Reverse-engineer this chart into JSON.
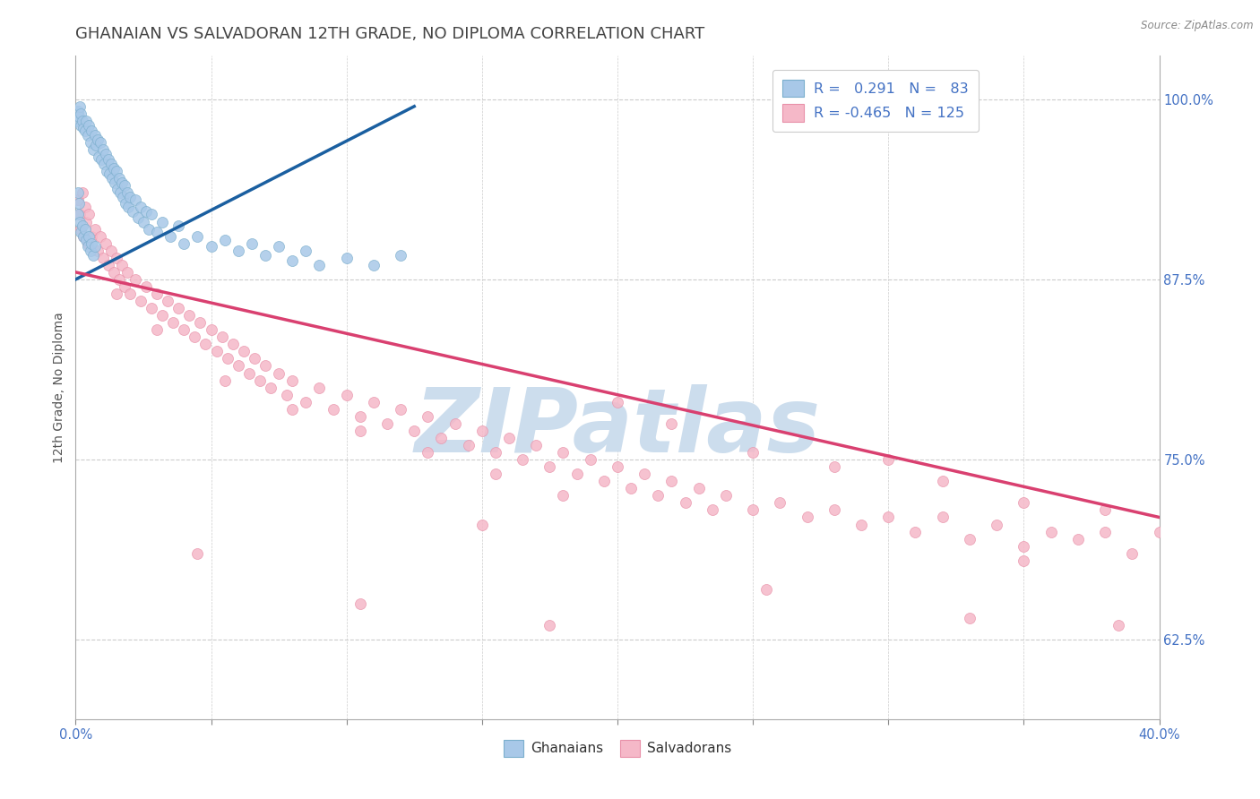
{
  "title": "GHANAIAN VS SALVADORAN 12TH GRADE, NO DIPLOMA CORRELATION CHART",
  "source": "Source: ZipAtlas.com",
  "legend_blue_label": "Ghanaians",
  "legend_pink_label": "Salvadorans",
  "R_blue": 0.291,
  "N_blue": 83,
  "R_pink": -0.465,
  "N_pink": 125,
  "xmin": 0.0,
  "xmax": 40.0,
  "ymin": 57.0,
  "ymax": 103.0,
  "yticks": [
    62.5,
    75.0,
    87.5,
    100.0
  ],
  "xticks": [
    0.0,
    5.0,
    10.0,
    15.0,
    20.0,
    25.0,
    30.0,
    35.0,
    40.0
  ],
  "blue_color": "#a8c8e8",
  "pink_color": "#f5b8c8",
  "blue_edge_color": "#7aaecc",
  "pink_edge_color": "#e890a8",
  "blue_line_color": "#1a5fa0",
  "pink_line_color": "#d94070",
  "blue_scatter": [
    [
      0.05,
      98.5
    ],
    [
      0.08,
      99.2
    ],
    [
      0.12,
      98.8
    ],
    [
      0.15,
      99.5
    ],
    [
      0.18,
      98.2
    ],
    [
      0.2,
      99.0
    ],
    [
      0.25,
      98.5
    ],
    [
      0.3,
      98.0
    ],
    [
      0.35,
      97.8
    ],
    [
      0.4,
      98.5
    ],
    [
      0.45,
      97.5
    ],
    [
      0.5,
      98.2
    ],
    [
      0.55,
      97.0
    ],
    [
      0.6,
      97.8
    ],
    [
      0.65,
      96.5
    ],
    [
      0.7,
      97.5
    ],
    [
      0.75,
      96.8
    ],
    [
      0.8,
      97.2
    ],
    [
      0.85,
      96.0
    ],
    [
      0.9,
      97.0
    ],
    [
      0.95,
      95.8
    ],
    [
      1.0,
      96.5
    ],
    [
      1.05,
      95.5
    ],
    [
      1.1,
      96.2
    ],
    [
      1.15,
      95.0
    ],
    [
      1.2,
      95.8
    ],
    [
      1.25,
      94.8
    ],
    [
      1.3,
      95.5
    ],
    [
      1.35,
      94.5
    ],
    [
      1.4,
      95.2
    ],
    [
      1.45,
      94.2
    ],
    [
      1.5,
      95.0
    ],
    [
      1.55,
      93.8
    ],
    [
      1.6,
      94.5
    ],
    [
      1.65,
      93.5
    ],
    [
      1.7,
      94.2
    ],
    [
      1.75,
      93.2
    ],
    [
      1.8,
      94.0
    ],
    [
      1.85,
      92.8
    ],
    [
      1.9,
      93.5
    ],
    [
      1.95,
      92.5
    ],
    [
      2.0,
      93.2
    ],
    [
      2.1,
      92.2
    ],
    [
      2.2,
      93.0
    ],
    [
      2.3,
      91.8
    ],
    [
      2.4,
      92.5
    ],
    [
      2.5,
      91.5
    ],
    [
      2.6,
      92.2
    ],
    [
      2.7,
      91.0
    ],
    [
      2.8,
      92.0
    ],
    [
      3.0,
      90.8
    ],
    [
      3.2,
      91.5
    ],
    [
      3.5,
      90.5
    ],
    [
      3.8,
      91.2
    ],
    [
      4.0,
      90.0
    ],
    [
      4.5,
      90.5
    ],
    [
      5.0,
      89.8
    ],
    [
      5.5,
      90.2
    ],
    [
      6.0,
      89.5
    ],
    [
      6.5,
      90.0
    ],
    [
      7.0,
      89.2
    ],
    [
      7.5,
      89.8
    ],
    [
      8.0,
      88.8
    ],
    [
      8.5,
      89.5
    ],
    [
      9.0,
      88.5
    ],
    [
      10.0,
      89.0
    ],
    [
      11.0,
      88.5
    ],
    [
      12.0,
      89.2
    ],
    [
      0.1,
      92.0
    ],
    [
      0.15,
      91.5
    ],
    [
      0.2,
      90.8
    ],
    [
      0.25,
      91.2
    ],
    [
      0.3,
      90.5
    ],
    [
      0.35,
      91.0
    ],
    [
      0.4,
      90.2
    ],
    [
      0.45,
      89.8
    ],
    [
      0.5,
      90.5
    ],
    [
      0.55,
      89.5
    ],
    [
      0.6,
      90.0
    ],
    [
      0.65,
      89.2
    ],
    [
      0.7,
      89.8
    ],
    [
      0.08,
      93.5
    ],
    [
      0.12,
      92.8
    ]
  ],
  "pink_scatter": [
    [
      0.1,
      93.0
    ],
    [
      0.15,
      92.0
    ],
    [
      0.2,
      91.0
    ],
    [
      0.25,
      93.5
    ],
    [
      0.3,
      90.5
    ],
    [
      0.35,
      92.5
    ],
    [
      0.4,
      91.5
    ],
    [
      0.45,
      90.0
    ],
    [
      0.5,
      92.0
    ],
    [
      0.6,
      90.5
    ],
    [
      0.7,
      91.0
    ],
    [
      0.8,
      89.5
    ],
    [
      0.9,
      90.5
    ],
    [
      1.0,
      89.0
    ],
    [
      1.1,
      90.0
    ],
    [
      1.2,
      88.5
    ],
    [
      1.3,
      89.5
    ],
    [
      1.4,
      88.0
    ],
    [
      1.5,
      89.0
    ],
    [
      1.6,
      87.5
    ],
    [
      1.7,
      88.5
    ],
    [
      1.8,
      87.0
    ],
    [
      1.9,
      88.0
    ],
    [
      2.0,
      86.5
    ],
    [
      2.2,
      87.5
    ],
    [
      2.4,
      86.0
    ],
    [
      2.6,
      87.0
    ],
    [
      2.8,
      85.5
    ],
    [
      3.0,
      86.5
    ],
    [
      3.2,
      85.0
    ],
    [
      3.4,
      86.0
    ],
    [
      3.6,
      84.5
    ],
    [
      3.8,
      85.5
    ],
    [
      4.0,
      84.0
    ],
    [
      4.2,
      85.0
    ],
    [
      4.4,
      83.5
    ],
    [
      4.6,
      84.5
    ],
    [
      4.8,
      83.0
    ],
    [
      5.0,
      84.0
    ],
    [
      5.2,
      82.5
    ],
    [
      5.4,
      83.5
    ],
    [
      5.6,
      82.0
    ],
    [
      5.8,
      83.0
    ],
    [
      6.0,
      81.5
    ],
    [
      6.2,
      82.5
    ],
    [
      6.4,
      81.0
    ],
    [
      6.6,
      82.0
    ],
    [
      6.8,
      80.5
    ],
    [
      7.0,
      81.5
    ],
    [
      7.2,
      80.0
    ],
    [
      7.5,
      81.0
    ],
    [
      7.8,
      79.5
    ],
    [
      8.0,
      80.5
    ],
    [
      8.5,
      79.0
    ],
    [
      9.0,
      80.0
    ],
    [
      9.5,
      78.5
    ],
    [
      10.0,
      79.5
    ],
    [
      10.5,
      78.0
    ],
    [
      11.0,
      79.0
    ],
    [
      11.5,
      77.5
    ],
    [
      12.0,
      78.5
    ],
    [
      12.5,
      77.0
    ],
    [
      13.0,
      78.0
    ],
    [
      13.5,
      76.5
    ],
    [
      14.0,
      77.5
    ],
    [
      14.5,
      76.0
    ],
    [
      15.0,
      77.0
    ],
    [
      15.5,
      75.5
    ],
    [
      16.0,
      76.5
    ],
    [
      16.5,
      75.0
    ],
    [
      17.0,
      76.0
    ],
    [
      17.5,
      74.5
    ],
    [
      18.0,
      75.5
    ],
    [
      18.5,
      74.0
    ],
    [
      19.0,
      75.0
    ],
    [
      19.5,
      73.5
    ],
    [
      20.0,
      74.5
    ],
    [
      20.5,
      73.0
    ],
    [
      21.0,
      74.0
    ],
    [
      21.5,
      72.5
    ],
    [
      22.0,
      73.5
    ],
    [
      22.5,
      72.0
    ],
    [
      23.0,
      73.0
    ],
    [
      23.5,
      71.5
    ],
    [
      24.0,
      72.5
    ],
    [
      25.0,
      71.5
    ],
    [
      26.0,
      72.0
    ],
    [
      27.0,
      71.0
    ],
    [
      28.0,
      71.5
    ],
    [
      29.0,
      70.5
    ],
    [
      30.0,
      71.0
    ],
    [
      31.0,
      70.0
    ],
    [
      32.0,
      71.0
    ],
    [
      33.0,
      69.5
    ],
    [
      34.0,
      70.5
    ],
    [
      35.0,
      69.0
    ],
    [
      36.0,
      70.0
    ],
    [
      37.0,
      69.5
    ],
    [
      38.0,
      70.0
    ],
    [
      39.0,
      68.5
    ],
    [
      1.5,
      86.5
    ],
    [
      3.0,
      84.0
    ],
    [
      5.5,
      80.5
    ],
    [
      8.0,
      78.5
    ],
    [
      10.5,
      77.0
    ],
    [
      13.0,
      75.5
    ],
    [
      15.5,
      74.0
    ],
    [
      18.0,
      72.5
    ],
    [
      20.0,
      79.0
    ],
    [
      22.0,
      77.5
    ],
    [
      25.0,
      75.5
    ],
    [
      28.0,
      74.5
    ],
    [
      30.0,
      75.0
    ],
    [
      32.0,
      73.5
    ],
    [
      35.0,
      72.0
    ],
    [
      38.0,
      71.5
    ],
    [
      40.0,
      70.0
    ],
    [
      4.5,
      68.5
    ],
    [
      10.5,
      65.0
    ],
    [
      17.5,
      63.5
    ],
    [
      25.5,
      66.0
    ],
    [
      33.0,
      64.0
    ],
    [
      38.5,
      63.5
    ],
    [
      35.0,
      68.0
    ],
    [
      15.0,
      70.5
    ]
  ],
  "blue_trendline": [
    [
      0.0,
      87.5
    ],
    [
      12.5,
      99.5
    ]
  ],
  "pink_trendline": [
    [
      0.0,
      88.0
    ],
    [
      40.0,
      71.0
    ]
  ],
  "watermark": "ZIPatlas",
  "watermark_color": "#ccdded",
  "background_color": "#ffffff",
  "grid_color": "#cccccc",
  "title_color": "#444444",
  "axis_label_color": "#4472c4",
  "title_fontsize": 13,
  "ylabel_label": "12th Grade, No Diploma",
  "label_fontsize": 10,
  "tick_fontsize": 10.5
}
